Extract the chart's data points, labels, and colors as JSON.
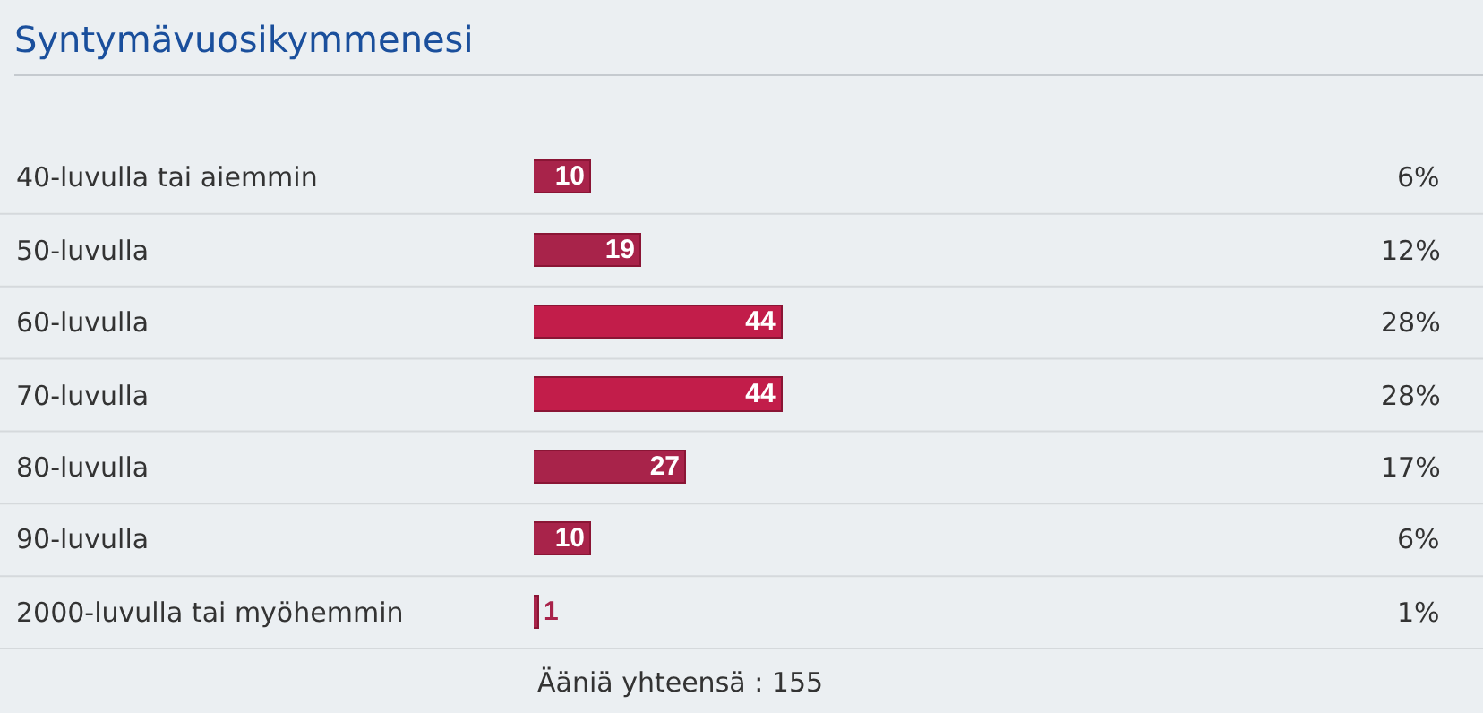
{
  "chart_data": {
    "type": "bar",
    "orientation": "horizontal",
    "title": "Syntymävuosikymmenesi",
    "categories": [
      "40-luvulla tai aiemmin",
      "50-luvulla",
      "60-luvulla",
      "70-luvulla",
      "80-luvulla",
      "90-luvulla",
      "2000-luvulla tai myöhemmin"
    ],
    "values": [
      10,
      19,
      44,
      44,
      27,
      10,
      1
    ],
    "colors": [
      "#a8234a",
      "#a8234a",
      "#c21d4a",
      "#c21d4a",
      "#a8234a",
      "#a8234a",
      "#a8234a"
    ],
    "data_labels": true,
    "grid": "y",
    "annotations": [
      "6%",
      "12%",
      "28%",
      "28%",
      "17%",
      "6%",
      "1%",
      "Ääniä yhteensä : 155"
    ]
  }
}
